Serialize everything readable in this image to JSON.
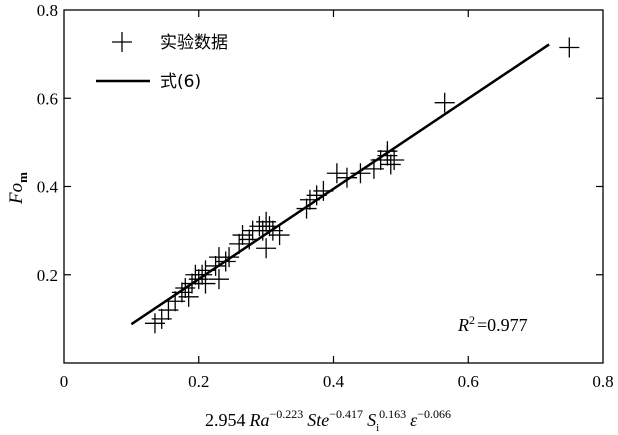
{
  "chart_data": {
    "type": "scatter",
    "xlim": [
      0,
      0.8
    ],
    "ylim": [
      0,
      0.8
    ],
    "xticks": [
      "0",
      "0.2",
      "0.4",
      "0.6",
      "0.8"
    ],
    "yticks": [
      "0.2",
      "0.4",
      "0.6",
      "0.8"
    ],
    "x_tick_values": [
      0,
      0.2,
      0.4,
      0.6,
      0.8
    ],
    "y_tick_values": [
      0.2,
      0.4,
      0.6,
      0.8
    ],
    "xlabel": {
      "coef": "2.954",
      "t1": "Ra",
      "e1": "−0.223",
      "t2": "Ste",
      "e2": "−0.417",
      "t3": "S",
      "s3": "i",
      "e3": "0.163",
      "t4": "ε",
      "e4": "−0.066"
    },
    "ylabel": {
      "main": "Fo",
      "sub": "m"
    },
    "grid": false,
    "legend_position": "top-left",
    "legend": {
      "marker_label": "实验数据",
      "line_label": "式(6)"
    },
    "annotation": {
      "r": "R",
      "sup": "2",
      "value": "=0.977"
    },
    "series": [
      {
        "name": "实验数据",
        "marker": "plus",
        "points": [
          [
            0.135,
            0.09
          ],
          [
            0.145,
            0.1
          ],
          [
            0.155,
            0.12
          ],
          [
            0.165,
            0.14
          ],
          [
            0.175,
            0.16
          ],
          [
            0.18,
            0.17
          ],
          [
            0.19,
            0.18
          ],
          [
            0.185,
            0.15
          ],
          [
            0.195,
            0.2
          ],
          [
            0.2,
            0.19
          ],
          [
            0.205,
            0.2
          ],
          [
            0.21,
            0.18
          ],
          [
            0.21,
            0.21
          ],
          [
            0.225,
            0.22
          ],
          [
            0.23,
            0.19
          ],
          [
            0.23,
            0.24
          ],
          [
            0.24,
            0.23
          ],
          [
            0.245,
            0.24
          ],
          [
            0.26,
            0.27
          ],
          [
            0.265,
            0.29
          ],
          [
            0.275,
            0.28
          ],
          [
            0.28,
            0.3
          ],
          [
            0.29,
            0.31
          ],
          [
            0.295,
            0.3
          ],
          [
            0.3,
            0.26
          ],
          [
            0.3,
            0.32
          ],
          [
            0.305,
            0.31
          ],
          [
            0.31,
            0.3
          ],
          [
            0.32,
            0.29
          ],
          [
            0.36,
            0.35
          ],
          [
            0.365,
            0.37
          ],
          [
            0.375,
            0.38
          ],
          [
            0.385,
            0.39
          ],
          [
            0.405,
            0.43
          ],
          [
            0.42,
            0.42
          ],
          [
            0.44,
            0.43
          ],
          [
            0.46,
            0.44
          ],
          [
            0.47,
            0.46
          ],
          [
            0.48,
            0.48
          ],
          [
            0.48,
            0.47
          ],
          [
            0.485,
            0.45
          ],
          [
            0.49,
            0.46
          ],
          [
            0.565,
            0.59
          ],
          [
            0.75,
            0.715
          ]
        ]
      },
      {
        "name": "式(6)",
        "style": "line",
        "points": [
          [
            0.1,
            0.088
          ],
          [
            0.72,
            0.722
          ]
        ]
      }
    ]
  }
}
